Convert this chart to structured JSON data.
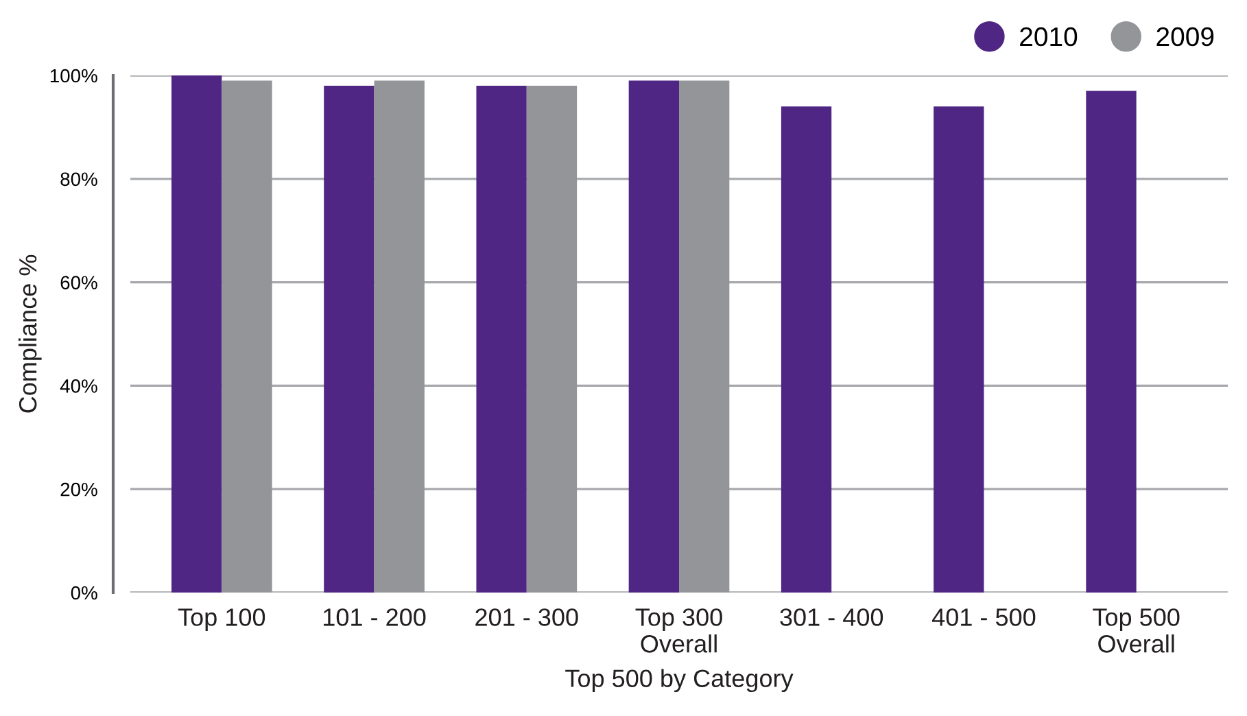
{
  "chart_data": {
    "type": "bar",
    "xlabel": "Top 500 by Category",
    "ylabel": "Compliance %",
    "categories": [
      "Top 100",
      "101 - 200",
      "201 - 300",
      "Top 300\nOverall",
      "301 - 400",
      "401 - 500",
      "Top 500\nOverall"
    ],
    "series": [
      {
        "name": "2010",
        "color": "#4f2683",
        "values": [
          100,
          98,
          98,
          99,
          94,
          94,
          97
        ]
      },
      {
        "name": "2009",
        "color": "#939598",
        "values": [
          99,
          99,
          98,
          99,
          null,
          null,
          null
        ]
      }
    ],
    "ylim": [
      0,
      100
    ],
    "yticks": [
      {
        "value": 0,
        "label": "0%"
      },
      {
        "value": 20,
        "label": "20%"
      },
      {
        "value": 40,
        "label": "40%"
      },
      {
        "value": 60,
        "label": "60%"
      },
      {
        "value": 80,
        "label": "80%"
      },
      {
        "value": 100,
        "label": "100%"
      }
    ],
    "grid": "y",
    "legend": "top right"
  }
}
